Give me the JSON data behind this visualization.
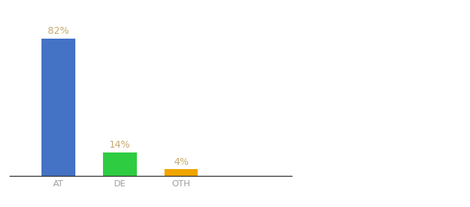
{
  "categories": [
    "AT",
    "DE",
    "OTH"
  ],
  "values": [
    82,
    14,
    4
  ],
  "bar_colors": [
    "#4472c4",
    "#2ecc40",
    "#f0a500"
  ],
  "label_color": "#c8a96e",
  "label_fontsize": 10,
  "xlabel_fontsize": 9,
  "xlabel_color": "#9e9e9e",
  "background_color": "#ffffff",
  "ylim": [
    0,
    95
  ],
  "bar_width": 0.55
}
